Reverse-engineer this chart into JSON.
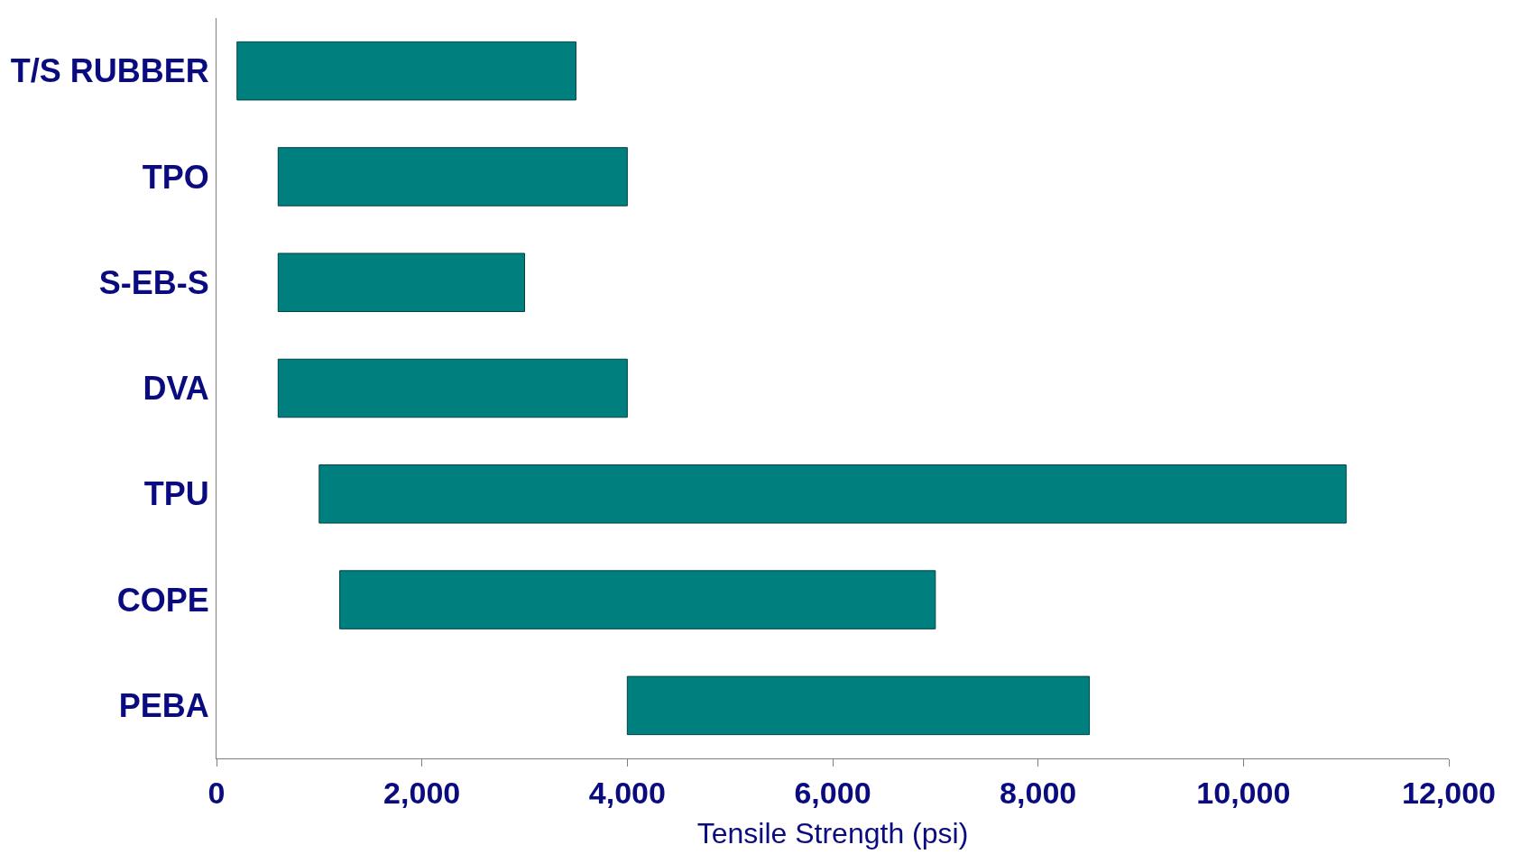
{
  "chart_data": {
    "type": "bar",
    "orientation": "horizontal",
    "xlabel": "Tensile Strength (psi)",
    "categories": [
      "T/S RUBBER",
      "TPO",
      "S-EB-S",
      "DVA",
      "TPU",
      "COPE",
      "PEBA"
    ],
    "base": [
      200,
      600,
      600,
      600,
      1000,
      1200,
      4000
    ],
    "values": [
      3300,
      3400,
      2400,
      3400,
      10000,
      5800,
      4500
    ],
    "color": "#007f7f",
    "xlim": [
      0,
      12000
    ],
    "xticks": [
      0,
      {
        "value": 2000,
        "label": "2,000"
      },
      {
        "value": 4000,
        "label": "4,000"
      },
      {
        "value": 6000,
        "label": "6,000"
      },
      {
        "value": 8000,
        "label": "8,000"
      },
      {
        "value": 10000,
        "label": "10,000"
      },
      {
        "value": 12000,
        "label": "12,000"
      }
    ],
    "tick_labels": "xy"
  }
}
